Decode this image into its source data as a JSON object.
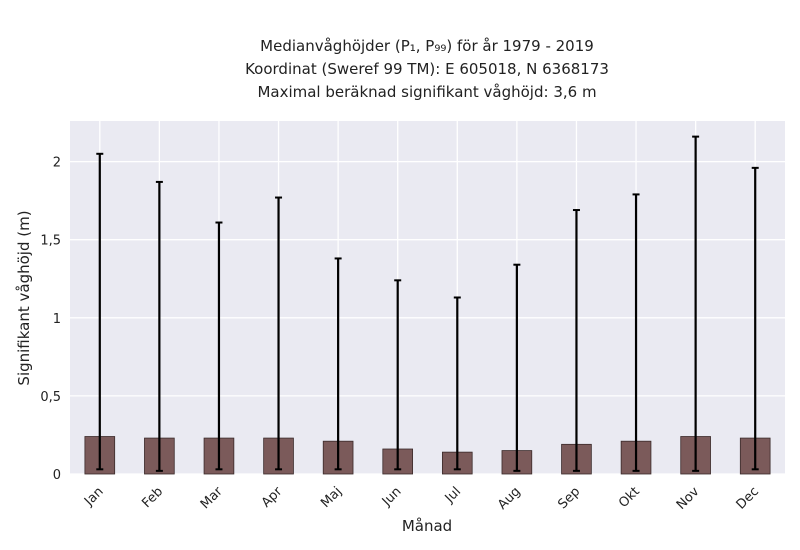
{
  "chart_data": {
    "type": "bar",
    "title": [
      "Medianvåghöjder (P₁, P₉₉) för år 1979 - 2019",
      "Koordinat (Sweref 99 TM): E 605018, N 6368173",
      "Maximal beräknad signifikant våghöjd: 3,6 m"
    ],
    "xlabel": "Månad",
    "ylabel": "Signifikant våghöjd (m)",
    "categories": [
      "Jan",
      "Feb",
      "Mar",
      "Apr",
      "Maj",
      "Jun",
      "Jul",
      "Aug",
      "Sep",
      "Okt",
      "Nov",
      "Dec"
    ],
    "values": [
      0.24,
      0.23,
      0.23,
      0.23,
      0.21,
      0.16,
      0.14,
      0.15,
      0.19,
      0.21,
      0.24,
      0.23
    ],
    "error_low": [
      0.03,
      0.02,
      0.03,
      0.03,
      0.03,
      0.03,
      0.03,
      0.02,
      0.02,
      0.02,
      0.02,
      0.03
    ],
    "error_high": [
      2.05,
      1.87,
      1.61,
      1.77,
      1.38,
      1.24,
      1.13,
      1.34,
      1.69,
      1.79,
      2.16,
      1.96
    ],
    "ylim": [
      0,
      2.26
    ],
    "yticks": [
      0,
      0.5,
      1,
      1.5,
      2
    ],
    "ytick_labels": [
      "0",
      "0,5",
      "1",
      "1,5",
      "2"
    ],
    "grid": true,
    "colors": {
      "bar": "#7b5a5a",
      "bar_edge": "#3a2a2a",
      "error": "#000000",
      "plot_bg": "#eaeaf2",
      "grid": "#ffffff"
    }
  }
}
